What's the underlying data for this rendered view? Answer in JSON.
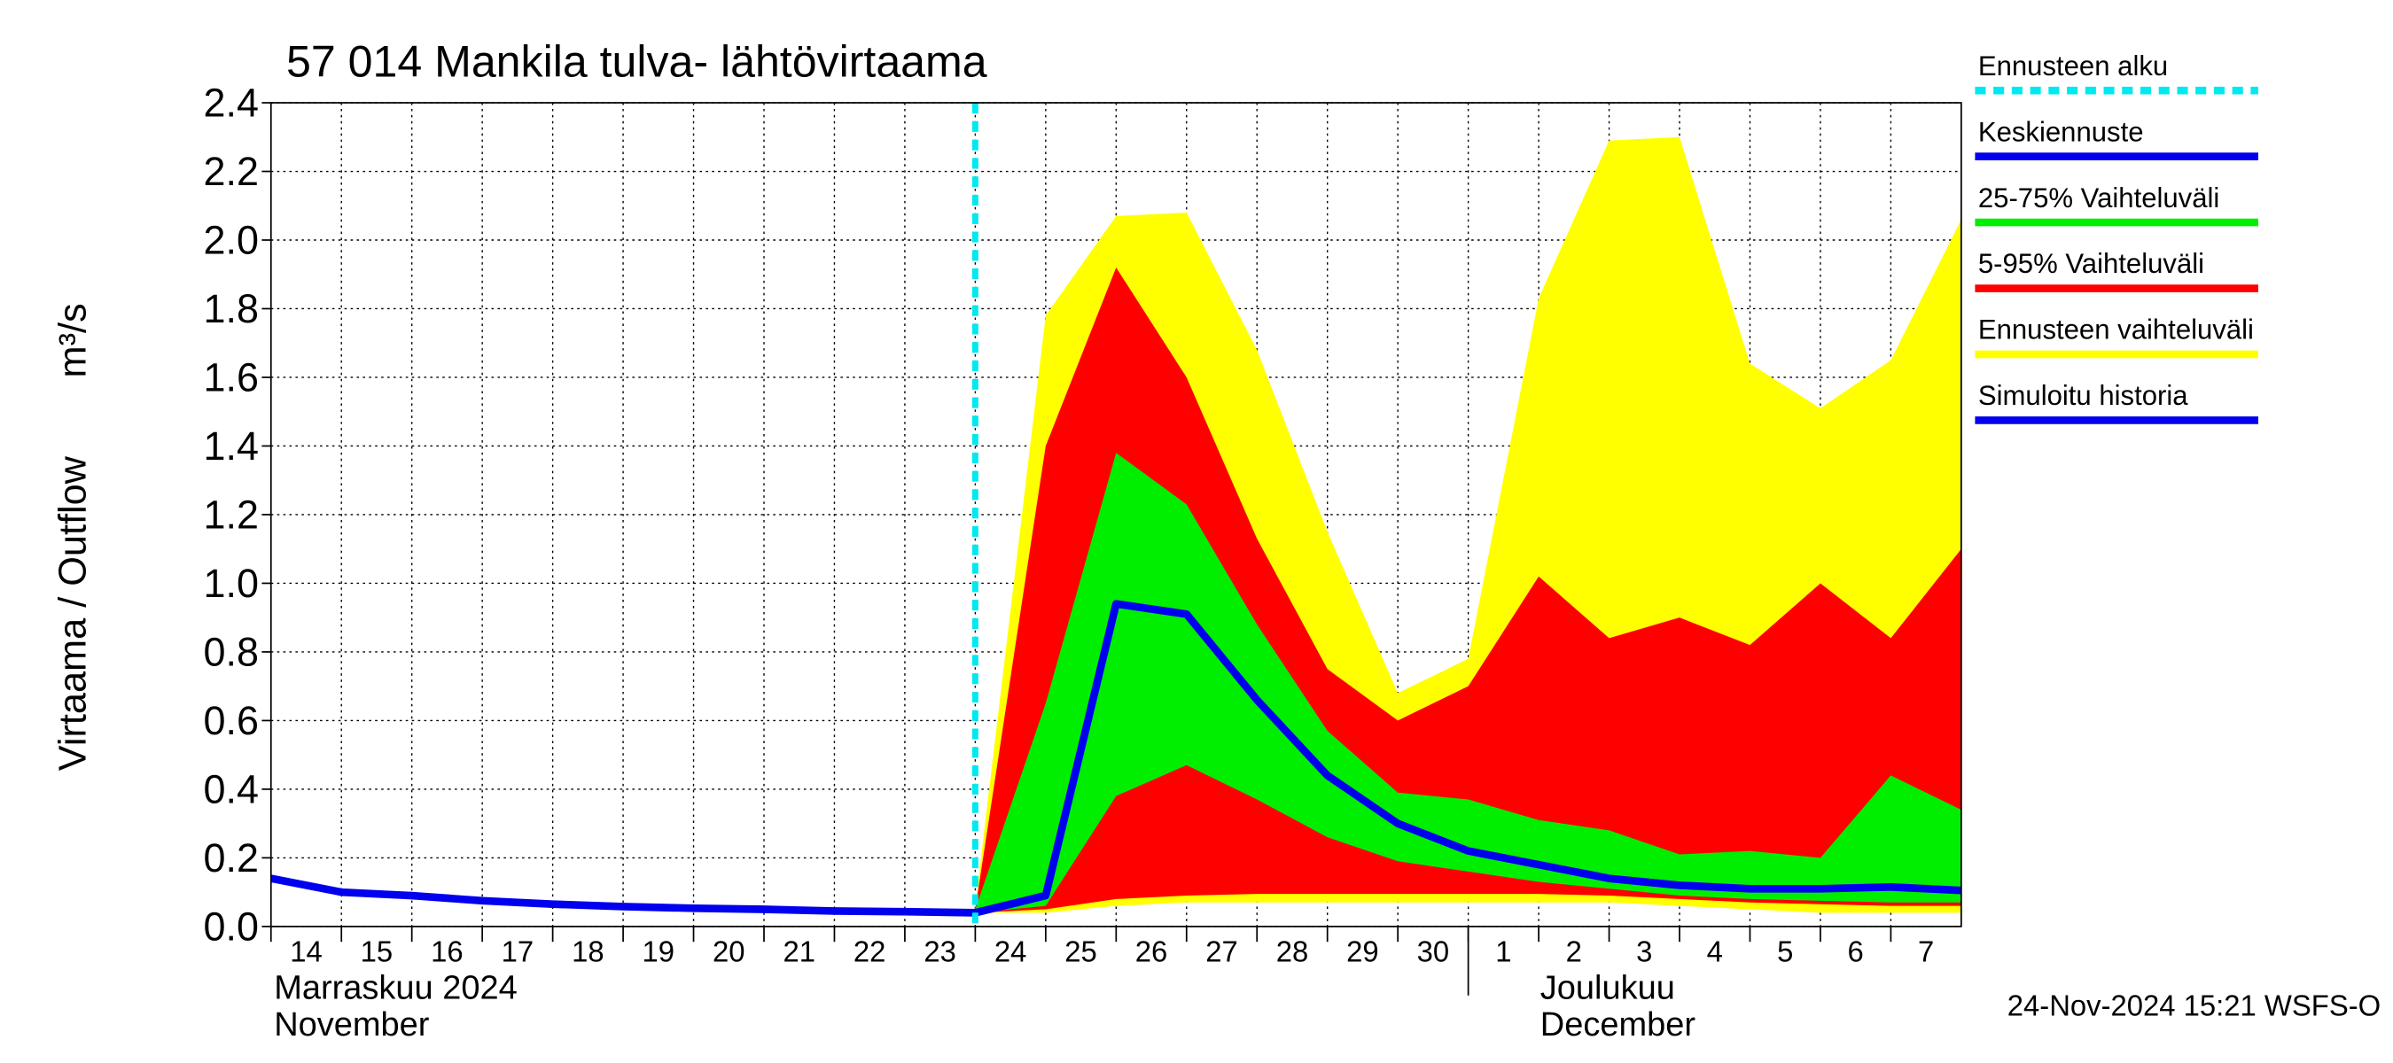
{
  "chart_data": {
    "type": "band-line",
    "title": "57 014 Mankila tulva- lähtövirtaama",
    "y_label": "Virtaama / Outflow",
    "y_unit": "m³/s",
    "x_month_labels": [
      {
        "x": "2024-11-14",
        "lines": [
          "Marraskuu 2024",
          "November"
        ]
      },
      {
        "x": "2024-12-01",
        "lines": [
          "Joulukuu",
          "December"
        ]
      }
    ],
    "footer": "24-Nov-2024 15:21 WSFS-O",
    "x": [
      "2024-11-14",
      "2024-11-15",
      "2024-11-16",
      "2024-11-17",
      "2024-11-18",
      "2024-11-19",
      "2024-11-20",
      "2024-11-21",
      "2024-11-22",
      "2024-11-23",
      "2024-11-24",
      "2024-11-25",
      "2024-11-26",
      "2024-11-27",
      "2024-11-28",
      "2024-11-29",
      "2024-11-30",
      "2024-12-01",
      "2024-12-02",
      "2024-12-03",
      "2024-12-04",
      "2024-12-05",
      "2024-12-06",
      "2024-12-07",
      "2024-12-08"
    ],
    "xlim": [
      "2024-11-14",
      "2024-12-08"
    ],
    "xticks": [
      {
        "value": "2024-11-14",
        "label": "14"
      },
      {
        "value": "2024-11-15",
        "label": "15"
      },
      {
        "value": "2024-11-16",
        "label": "16"
      },
      {
        "value": "2024-11-17",
        "label": "17"
      },
      {
        "value": "2024-11-18",
        "label": "18"
      },
      {
        "value": "2024-11-19",
        "label": "19"
      },
      {
        "value": "2024-11-20",
        "label": "20"
      },
      {
        "value": "2024-11-21",
        "label": "21"
      },
      {
        "value": "2024-11-22",
        "label": "22"
      },
      {
        "value": "2024-11-23",
        "label": "23"
      },
      {
        "value": "2024-11-24",
        "label": "24"
      },
      {
        "value": "2024-11-25",
        "label": "25"
      },
      {
        "value": "2024-11-26",
        "label": "26"
      },
      {
        "value": "2024-11-27",
        "label": "27"
      },
      {
        "value": "2024-11-28",
        "label": "28"
      },
      {
        "value": "2024-11-29",
        "label": "29"
      },
      {
        "value": "2024-11-30",
        "label": "30"
      },
      {
        "value": "2024-12-01",
        "label": "1"
      },
      {
        "value": "2024-12-02",
        "label": "2"
      },
      {
        "value": "2024-12-03",
        "label": "3"
      },
      {
        "value": "2024-12-04",
        "label": "4"
      },
      {
        "value": "2024-12-05",
        "label": "5"
      },
      {
        "value": "2024-12-06",
        "label": "6"
      },
      {
        "value": "2024-12-07",
        "label": "7"
      }
    ],
    "ylim": [
      0,
      2.4
    ],
    "yticks": [
      {
        "value": 0,
        "label": "0.0"
      },
      0.2,
      0.4,
      0.6,
      0.8,
      {
        "value": 1,
        "label": "1.0"
      },
      1.2,
      1.4,
      1.6,
      1.8,
      {
        "value": 2,
        "label": "2.0"
      },
      2.2,
      2.4
    ],
    "grid": true,
    "legend": "outside-right",
    "forecast_start": {
      "name": "Ennusteen alku",
      "color": "#00e8f0",
      "x": "2024-11-24"
    },
    "series": [
      {
        "name": "Keskiennuste",
        "color": "#0000ee",
        "kind": "line",
        "values": [
          null,
          null,
          null,
          null,
          null,
          null,
          null,
          null,
          null,
          null,
          0.04,
          0.09,
          0.94,
          0.91,
          0.66,
          0.44,
          0.3,
          0.22,
          0.18,
          0.14,
          0.12,
          0.11,
          0.11,
          0.115,
          0.105
        ]
      },
      {
        "name": "25-75% Vaihteluväli",
        "color": "#00ee00",
        "kind": "band",
        "upper": [
          null,
          null,
          null,
          null,
          null,
          null,
          null,
          null,
          null,
          null,
          0.05,
          0.65,
          1.38,
          1.23,
          0.88,
          0.57,
          0.39,
          0.37,
          0.31,
          0.28,
          0.21,
          0.22,
          0.2,
          0.44,
          0.34
        ],
        "lower": [
          null,
          null,
          null,
          null,
          null,
          null,
          null,
          null,
          null,
          null,
          0.04,
          0.06,
          0.38,
          0.47,
          0.37,
          0.26,
          0.19,
          0.16,
          0.13,
          0.11,
          0.09,
          0.08,
          0.075,
          0.07,
          0.07
        ]
      },
      {
        "name": "5-95% Vaihteluväli",
        "color": "#ff0000",
        "kind": "band",
        "upper": [
          null,
          null,
          null,
          null,
          null,
          null,
          null,
          null,
          null,
          null,
          0.05,
          1.4,
          1.92,
          1.6,
          1.13,
          0.75,
          0.6,
          0.7,
          1.02,
          0.84,
          0.9,
          0.82,
          1.0,
          0.84,
          1.1
        ],
        "lower": [
          null,
          null,
          null,
          null,
          null,
          null,
          null,
          null,
          null,
          null,
          0.04,
          0.05,
          0.08,
          0.09,
          0.095,
          0.095,
          0.095,
          0.095,
          0.095,
          0.09,
          0.08,
          0.07,
          0.065,
          0.06,
          0.06
        ]
      },
      {
        "name": "Ennusteen vaihteluväli",
        "color": "#ffff00",
        "kind": "band",
        "upper": [
          null,
          null,
          null,
          null,
          null,
          null,
          null,
          null,
          null,
          null,
          0.06,
          1.78,
          2.07,
          2.08,
          1.68,
          1.15,
          0.68,
          0.78,
          1.83,
          2.29,
          2.3,
          1.64,
          1.51,
          1.65,
          2.06
        ],
        "lower": [
          null,
          null,
          null,
          null,
          null,
          null,
          null,
          null,
          null,
          null,
          0.04,
          0.04,
          0.06,
          0.07,
          0.07,
          0.07,
          0.07,
          0.07,
          0.07,
          0.07,
          0.06,
          0.05,
          0.04,
          0.04,
          0.04
        ]
      },
      {
        "name": "Simuloitu historia",
        "color": "#0000ee",
        "kind": "line",
        "values": [
          0.14,
          0.1,
          0.09,
          0.075,
          0.065,
          0.058,
          0.053,
          0.05,
          0.045,
          0.043,
          0.04,
          null,
          null,
          null,
          null,
          null,
          null,
          null,
          null,
          null,
          null,
          null,
          null,
          null,
          null
        ]
      }
    ]
  }
}
